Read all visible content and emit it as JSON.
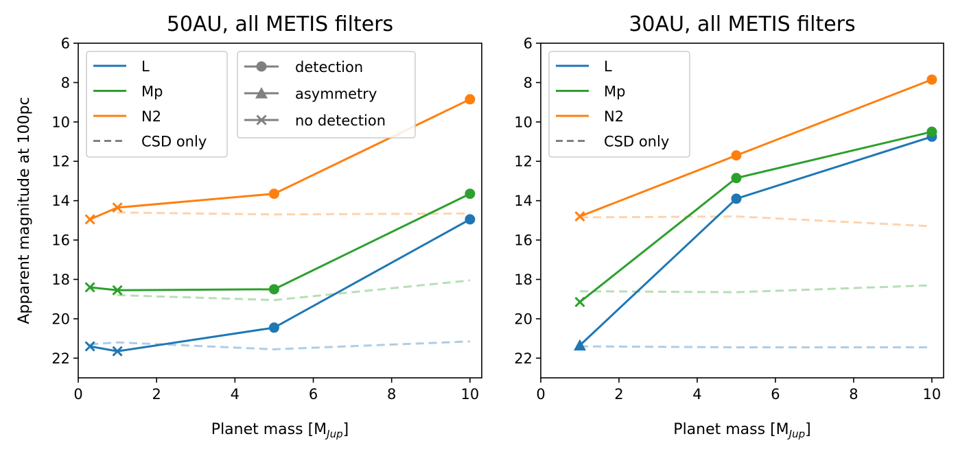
{
  "chart_data": [
    {
      "type": "line",
      "title": "50AU, all METIS filters",
      "xlabel": "Planet mass [M",
      "xlabel_sub": "Jup",
      "xlabel_end": "]",
      "ylabel": "Apparent magnitude at 100pc",
      "xlim": [
        0,
        10.3
      ],
      "ylim": [
        23,
        6
      ],
      "y_inverted": true,
      "xticks": [
        0,
        2,
        4,
        6,
        8,
        10
      ],
      "yticks": [
        6,
        8,
        10,
        12,
        14,
        16,
        18,
        20,
        22
      ],
      "legend_filters": [
        "L",
        "Mp",
        "N2",
        "CSD only"
      ],
      "legend_markers": [
        "detection",
        "asymmetry",
        "no detection"
      ],
      "series": [
        {
          "name": "L",
          "color": "#1f77b4",
          "x": [
            0.3,
            1,
            5,
            10
          ],
          "y": [
            21.4,
            21.65,
            20.45,
            14.95
          ],
          "markers": [
            "x",
            "x",
            "o",
            "o"
          ]
        },
        {
          "name": "Mp",
          "color": "#2ca02c",
          "x": [
            0.3,
            1,
            5,
            10
          ],
          "y": [
            18.4,
            18.55,
            18.5,
            13.65
          ],
          "markers": [
            "x",
            "x",
            "o",
            "o"
          ]
        },
        {
          "name": "N2",
          "color": "#ff7f0e",
          "x": [
            0.3,
            1,
            5,
            10
          ],
          "y": [
            14.95,
            14.35,
            13.65,
            8.85
          ],
          "markers": [
            "x",
            "x",
            "o",
            "o"
          ]
        }
      ],
      "csd_series": [
        {
          "filter": "L",
          "color": "#aecde6",
          "x": [
            0.3,
            1,
            5,
            10
          ],
          "y": [
            21.3,
            21.2,
            21.55,
            21.15
          ]
        },
        {
          "filter": "Mp",
          "color": "#b6dfb4",
          "x": [
            1,
            5,
            10
          ],
          "y": [
            18.8,
            19.05,
            18.05
          ]
        },
        {
          "filter": "N2",
          "color": "#ffd2ad",
          "x": [
            1,
            5,
            10
          ],
          "y": [
            14.6,
            14.7,
            14.65
          ]
        }
      ]
    },
    {
      "type": "line",
      "title": "30AU, all METIS filters",
      "xlabel": "Planet mass [M",
      "xlabel_sub": "Jup",
      "xlabel_end": "]",
      "ylabel": "",
      "xlim": [
        0,
        10.3
      ],
      "ylim": [
        23,
        6
      ],
      "y_inverted": true,
      "xticks": [
        0,
        2,
        4,
        6,
        8,
        10
      ],
      "yticks": [
        6,
        8,
        10,
        12,
        14,
        16,
        18,
        20,
        22
      ],
      "legend_filters": [
        "L",
        "Mp",
        "N2",
        "CSD only"
      ],
      "legend_markers": [],
      "series": [
        {
          "name": "L",
          "color": "#1f77b4",
          "x": [
            1,
            5,
            10
          ],
          "y": [
            21.35,
            13.9,
            10.75
          ],
          "markers": [
            "^",
            "o",
            "o"
          ]
        },
        {
          "name": "Mp",
          "color": "#2ca02c",
          "x": [
            1,
            5,
            10
          ],
          "y": [
            19.15,
            12.85,
            10.5
          ],
          "markers": [
            "x",
            "o",
            "o"
          ]
        },
        {
          "name": "N2",
          "color": "#ff7f0e",
          "x": [
            1,
            5,
            10
          ],
          "y": [
            14.8,
            11.7,
            7.85
          ],
          "markers": [
            "x",
            "o",
            "o"
          ]
        }
      ],
      "csd_series": [
        {
          "filter": "L",
          "color": "#aecde6",
          "x": [
            1,
            5,
            10
          ],
          "y": [
            21.4,
            21.45,
            21.45
          ]
        },
        {
          "filter": "Mp",
          "color": "#b6dfb4",
          "x": [
            1,
            5,
            10
          ],
          "y": [
            18.6,
            18.65,
            18.3
          ]
        },
        {
          "filter": "N2",
          "color": "#ffd2ad",
          "x": [
            1,
            5,
            10
          ],
          "y": [
            14.85,
            14.8,
            15.3
          ]
        }
      ]
    }
  ]
}
